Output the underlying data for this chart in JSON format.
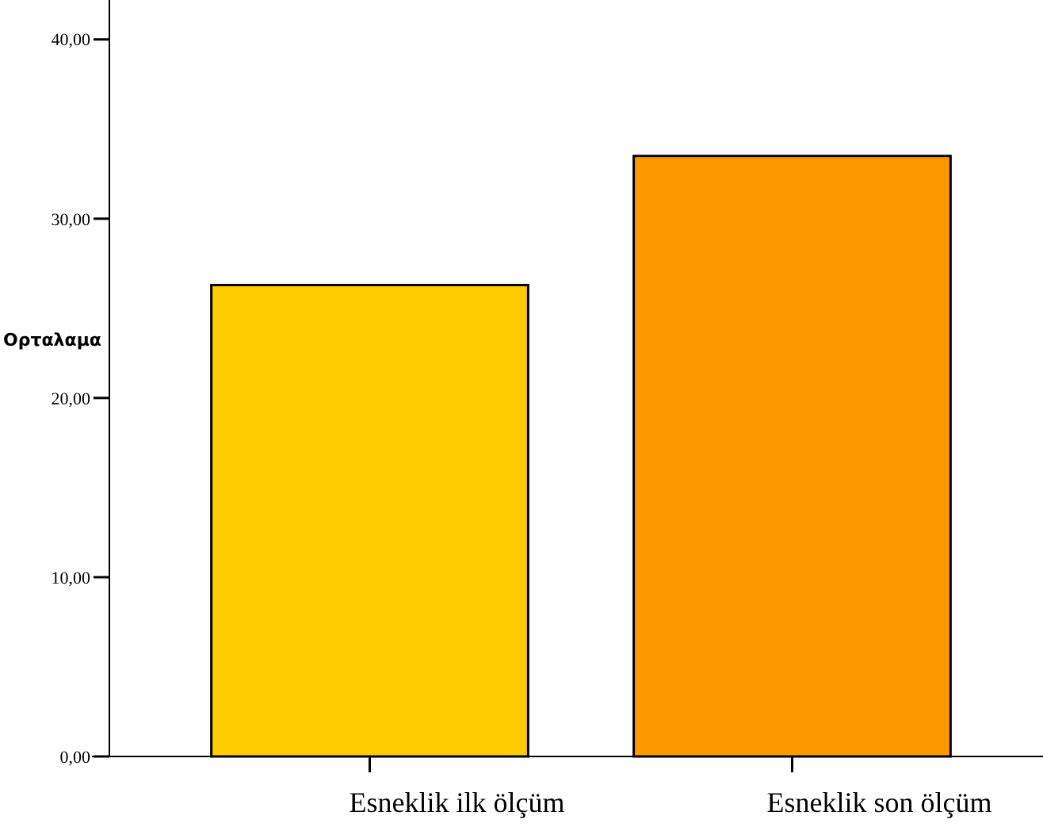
{
  "chart_data": {
    "type": "bar",
    "ylabel": "Ορταλαμα",
    "categories": [
      "Esneklik ilk ölçüm",
      "Esneklik son ölçüm"
    ],
    "values": [
      26.3,
      33.5
    ],
    "colors": [
      "#ffcc00",
      "#ff9900"
    ],
    "ylim": [
      0,
      42.2
    ],
    "yticks": [
      {
        "value": 0,
        "label": "0,00"
      },
      {
        "value": 10,
        "label": "10,00"
      },
      {
        "value": 20,
        "label": "20,00"
      },
      {
        "value": 30,
        "label": "30,00"
      },
      {
        "value": 40,
        "label": "40,00"
      }
    ],
    "grid": false
  }
}
